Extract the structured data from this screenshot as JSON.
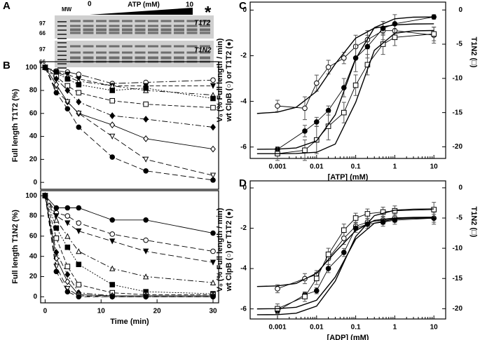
{
  "panels": [
    "A",
    "B",
    "C",
    "D"
  ],
  "gel": {
    "mw": "MW",
    "start": "0",
    "axis": "ATP (mM)",
    "end": "10",
    "star": "*",
    "top_markers": [
      "97",
      "66"
    ],
    "bottom_markers": [
      "97",
      "66"
    ],
    "top_label": "T1T2",
    "bottom_label": "T1N2"
  },
  "chart_data": [
    {
      "type": "line",
      "ylabel": [
        "Full length T1T2 (%)"
      ],
      "xlim": [
        -0.8,
        31
      ],
      "ylim": [
        -6,
        105
      ],
      "yticks": [
        0,
        20,
        40,
        60,
        80,
        100
      ],
      "x": [
        0,
        2,
        4,
        6,
        12,
        18,
        30
      ],
      "series": [
        {
          "marker": "circle-open",
          "dash": "10 3 2 3",
          "values": [
            100,
            97,
            96,
            94,
            86,
            87,
            89
          ]
        },
        {
          "marker": "triangle-down",
          "dash": "6 3",
          "values": [
            100,
            96,
            94,
            90,
            84,
            84,
            84
          ]
        },
        {
          "marker": "triangle-up-open",
          "dash": "8 3 2 3 2 3",
          "values": [
            100,
            96,
            92,
            88,
            84,
            80,
            76
          ]
        },
        {
          "marker": "square",
          "dash": "2 2",
          "values": [
            100,
            95,
            90,
            85,
            80,
            82,
            73
          ]
        },
        {
          "marker": "square-open",
          "dash": "6 3",
          "values": [
            100,
            92,
            84,
            78,
            71,
            68,
            65
          ]
        },
        {
          "marker": "diamond",
          "dash": "8 3 2 3",
          "values": [
            100,
            90,
            80,
            70,
            58,
            55,
            48
          ]
        },
        {
          "marker": "diamond-open",
          "dash": "",
          "values": [
            100,
            85,
            70,
            60,
            50,
            38,
            29
          ]
        },
        {
          "marker": "triangle-down-open",
          "dash": "8 4",
          "values": [
            100,
            80,
            70,
            60,
            40,
            20,
            6
          ]
        },
        {
          "marker": "circle",
          "dash": "8 4",
          "values": [
            100,
            78,
            64,
            48,
            22,
            10,
            2
          ]
        }
      ]
    },
    {
      "type": "line",
      "ylabel": [
        "Full length T1N2 (%)"
      ],
      "xlabel": "Time (min)",
      "xlim": [
        -0.8,
        31
      ],
      "ylim": [
        -6,
        105
      ],
      "yticks": [
        0,
        20,
        40,
        60,
        80,
        100
      ],
      "xticks": [
        0,
        10,
        20,
        30
      ],
      "x": [
        0,
        2,
        4,
        6,
        12,
        18,
        30
      ],
      "series": [
        {
          "marker": "circle",
          "dash": "",
          "values": [
            100,
            88,
            88,
            88,
            76,
            76,
            63
          ]
        },
        {
          "marker": "circle-open",
          "dash": "8 4",
          "values": [
            100,
            83,
            80,
            73,
            62,
            56,
            45
          ]
        },
        {
          "marker": "triangle-down",
          "dash": "8 4",
          "values": [
            100,
            80,
            73,
            65,
            55,
            45,
            34
          ]
        },
        {
          "marker": "triangle-up-open",
          "dash": "8 3 2 3",
          "values": [
            100,
            76,
            60,
            45,
            28,
            20,
            14
          ]
        },
        {
          "marker": "square",
          "dash": "2 2",
          "values": [
            100,
            68,
            49,
            32,
            12,
            5,
            3
          ]
        },
        {
          "marker": "square-open",
          "dash": "6 3",
          "values": [
            100,
            58,
            30,
            12,
            4,
            2,
            2
          ]
        },
        {
          "marker": "diamond",
          "dash": "8 3 2 3",
          "values": [
            100,
            44,
            22,
            4,
            1,
            1,
            1
          ]
        },
        {
          "marker": "diamond-open",
          "dash": "",
          "values": [
            100,
            38,
            15,
            2,
            1,
            1,
            1
          ]
        },
        {
          "marker": "triangle-down-open",
          "dash": "8 4",
          "values": [
            100,
            30,
            8,
            1,
            0,
            0,
            0
          ]
        },
        {
          "marker": "circle",
          "dash": "8 4",
          "values": [
            100,
            25,
            5,
            0,
            0,
            0,
            0
          ]
        }
      ]
    },
    {
      "type": "line",
      "xscale": "log",
      "ylabel": [
        "V₀ (% Full length / min)",
        "wt ClpB (○) or T1T2 (●)"
      ],
      "y2label": "T1N2 (□)",
      "xlabel": "[ATP] (mM)",
      "xlim": [
        0.0002,
        20
      ],
      "ylim": [
        -6.5,
        0.35
      ],
      "yticks": [
        -6,
        -4,
        -2,
        0
      ],
      "y2lim": [
        -21.7,
        1.15
      ],
      "y2ticks": [
        -20,
        -15,
        -10,
        -5,
        0
      ],
      "xticks": [
        0.001,
        0.01,
        0.1,
        1,
        10
      ],
      "x": [
        0.001,
        0.005,
        0.01,
        0.02,
        0.05,
        0.1,
        0.2,
        0.5,
        1,
        10
      ],
      "series": [
        {
          "marker": "circle-open",
          "values": [
            -4.2,
            -4.3,
            -3.2,
            -2.5,
            -2.1,
            -1.6,
            -1.3,
            -0.9,
            -0.9,
            -1.1
          ],
          "errors": [
            0.25,
            0.5,
            0.35,
            0.3,
            0.25,
            0.5,
            0.4,
            0.4,
            0.3,
            0.35
          ]
        },
        {
          "marker": "circle",
          "values": [
            -6.1,
            -5.3,
            -4.9,
            -4.4,
            -3.4,
            -2.1,
            -1.6,
            -0.8,
            -0.6,
            -0.3
          ],
          "errors": [
            0.1,
            0.25,
            0.2,
            0.2,
            0.4,
            0.6,
            0.5,
            0.3,
            0.4,
            0.1
          ]
        },
        {
          "marker": "square-open",
          "axis": "y2",
          "values": [
            -21,
            -20.5,
            -19,
            -17,
            -15,
            -11,
            -8,
            -5,
            -4,
            -3.5
          ],
          "errors": [
            1,
            1.5,
            2,
            2,
            1.5,
            1.5,
            1.5,
            1.5,
            1.2,
            1
          ]
        },
        {
          "fit": true,
          "x": [
            0.0003,
            0.001,
            0.003,
            0.01,
            0.03,
            0.1,
            0.3,
            1,
            3,
            10
          ],
          "values": [
            -4.53,
            -4.47,
            -4.26,
            -3.56,
            -2.36,
            -1.23,
            -0.79,
            -0.65,
            -0.61,
            -0.6
          ]
        },
        {
          "fit": true,
          "x": [
            0.0003,
            0.001,
            0.003,
            0.01,
            0.03,
            0.1,
            0.3,
            1,
            3,
            10
          ],
          "values": [
            -6.1,
            -6.09,
            -6.04,
            -5.73,
            -4.59,
            -2.14,
            -0.77,
            -0.38,
            -0.31,
            -0.3
          ]
        },
        {
          "fit": true,
          "axis": "y2",
          "x": [
            0.0003,
            0.001,
            0.003,
            0.01,
            0.03,
            0.1,
            0.3,
            1,
            3,
            10
          ],
          "values": [
            -21,
            -21,
            -20.98,
            -20.8,
            -19.6,
            -13.5,
            -5.9,
            -3.4,
            -3.05,
            -3
          ]
        }
      ]
    },
    {
      "type": "line",
      "xscale": "log",
      "ylabel": [
        "V₀ (% Full length / min)",
        "wt ClpB (○) or T1T2 (●)"
      ],
      "y2label": "T1N2 (□)",
      "xlabel": "[ADP] (mM)",
      "xlim": [
        0.0002,
        20
      ],
      "ylim": [
        -6.5,
        0.35
      ],
      "yticks": [
        -6,
        -4,
        -2,
        0
      ],
      "y2lim": [
        -21.7,
        1.15
      ],
      "y2ticks": [
        -20,
        -15,
        -10,
        -5,
        0
      ],
      "xticks": [
        0.001,
        0.01,
        0.1,
        1,
        10
      ],
      "x": [
        0.001,
        0.005,
        0.01,
        0.02,
        0.05,
        0.1,
        0.2,
        0.5,
        1,
        10
      ],
      "series": [
        {
          "marker": "circle-open",
          "values": [
            -5,
            -4.5,
            -4.3,
            -3.5,
            -2.5,
            -1.9,
            -1.7,
            -1.6,
            -1.5,
            -1.5
          ],
          "errors": [
            0.2,
            0.25,
            0.2,
            0.3,
            0.3,
            0.2,
            0.2,
            0.2,
            0.2,
            0.3
          ]
        },
        {
          "marker": "circle",
          "values": [
            -6.1,
            -5.3,
            -5.1,
            -4,
            -3.2,
            -2,
            -1.8,
            -1.7,
            -1.6,
            -1.5
          ],
          "errors": [
            0.1,
            0.1,
            0.15,
            0.2,
            0.2,
            0.2,
            0.2,
            0.2,
            0.2,
            0.2
          ]
        },
        {
          "marker": "square-open",
          "axis": "y2",
          "values": [
            -20,
            -18,
            -15,
            -11,
            -7,
            -5,
            -4.3,
            -4,
            -3.8,
            -3.6
          ],
          "errors": [
            0.8,
            0.8,
            1,
            1,
            1,
            0.8,
            0.8,
            0.8,
            0.8,
            1.2
          ]
        },
        {
          "fit": true,
          "x": [
            0.0003,
            0.001,
            0.003,
            0.01,
            0.03,
            0.1,
            0.3,
            1,
            3,
            10
          ],
          "values": [
            -4.89,
            -4.86,
            -4.74,
            -4.23,
            -3.18,
            -2.12,
            -1.61,
            -1.49,
            -1.46,
            -1.45
          ]
        },
        {
          "fit": true,
          "x": [
            0.0003,
            0.001,
            0.003,
            0.01,
            0.03,
            0.1,
            0.3,
            1,
            3,
            10
          ],
          "values": [
            -6,
            -5.99,
            -5.92,
            -5.57,
            -4.42,
            -2.54,
            -1.75,
            -1.54,
            -1.5,
            -1.5
          ]
        },
        {
          "fit": true,
          "axis": "y2",
          "x": [
            0.0003,
            0.001,
            0.003,
            0.01,
            0.03,
            0.1,
            0.3,
            1,
            3,
            10
          ],
          "values": [
            -21,
            -20.98,
            -20.75,
            -19.57,
            -15.44,
            -8.07,
            -4.6,
            -3.7,
            -3.54,
            -3.5
          ]
        }
      ]
    }
  ]
}
